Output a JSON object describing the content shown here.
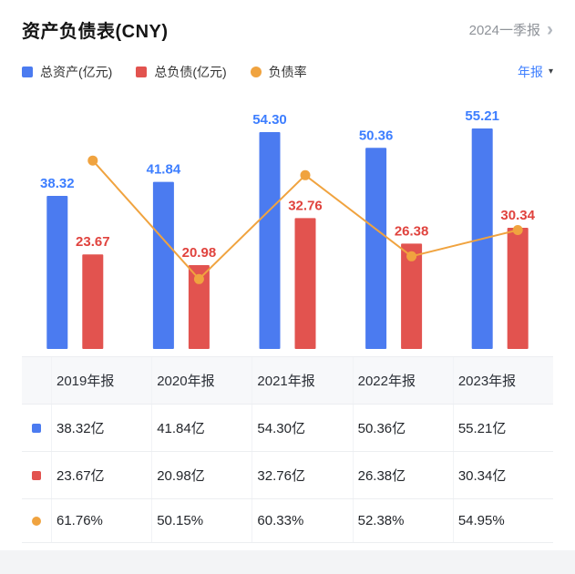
{
  "header": {
    "title": "资产负债表(CNY)",
    "period": {
      "label": "2024一季报",
      "chevron": "›"
    }
  },
  "legend": {
    "items": [
      {
        "label": "总资产(亿元)",
        "color": "#4b7bf0",
        "shape": "square"
      },
      {
        "label": "总负债(亿元)",
        "color": "#e2534f",
        "shape": "square"
      },
      {
        "label": "负债率",
        "color": "#f0a33f",
        "shape": "circle"
      }
    ],
    "selector": {
      "label": "年报",
      "caret": "▾",
      "color": "#3d7eff"
    }
  },
  "chart_data": {
    "type": "bar",
    "subtype": "grouped-bars-with-line",
    "categories": [
      "2019年报",
      "2020年报",
      "2021年报",
      "2022年报",
      "2023年报"
    ],
    "series": [
      {
        "name": "总资产(亿元)",
        "kind": "bar",
        "color": "#4b7bf0",
        "label_color": "#3d7eff",
        "values": [
          38.32,
          41.84,
          54.3,
          50.36,
          55.21
        ],
        "labels": [
          "38.32",
          "41.84",
          "54.30",
          "50.36",
          "55.21"
        ]
      },
      {
        "name": "总负债(亿元)",
        "kind": "bar",
        "color": "#e2534f",
        "label_color": "#e0433e",
        "values": [
          23.67,
          20.98,
          32.76,
          26.38,
          30.34
        ],
        "labels": [
          "23.67",
          "20.98",
          "32.76",
          "26.38",
          "30.34"
        ]
      },
      {
        "name": "负债率",
        "kind": "line",
        "color": "#f0a33f",
        "unit": "%",
        "values": [
          61.76,
          50.15,
          60.33,
          52.38,
          54.95
        ]
      }
    ],
    "bar_unit": "亿元",
    "value_labels": "bars-only",
    "grid": false,
    "axes": "hidden",
    "legend_position": "top"
  },
  "table": {
    "columns": [
      "2019年报",
      "2020年报",
      "2021年报",
      "2022年报",
      "2023年报"
    ],
    "rows": [
      {
        "icon": "blue-square-icon",
        "color": "#4b7bf0",
        "values": [
          "38.32亿",
          "41.84亿",
          "54.30亿",
          "50.36亿",
          "55.21亿"
        ]
      },
      {
        "icon": "red-square-icon",
        "color": "#e2534f",
        "values": [
          "23.67亿",
          "20.98亿",
          "32.76亿",
          "26.38亿",
          "30.34亿"
        ]
      },
      {
        "icon": "orange-circle-icon",
        "color": "#f0a33f",
        "values": [
          "61.76%",
          "50.15%",
          "60.33%",
          "52.38%",
          "54.95%"
        ]
      }
    ]
  }
}
